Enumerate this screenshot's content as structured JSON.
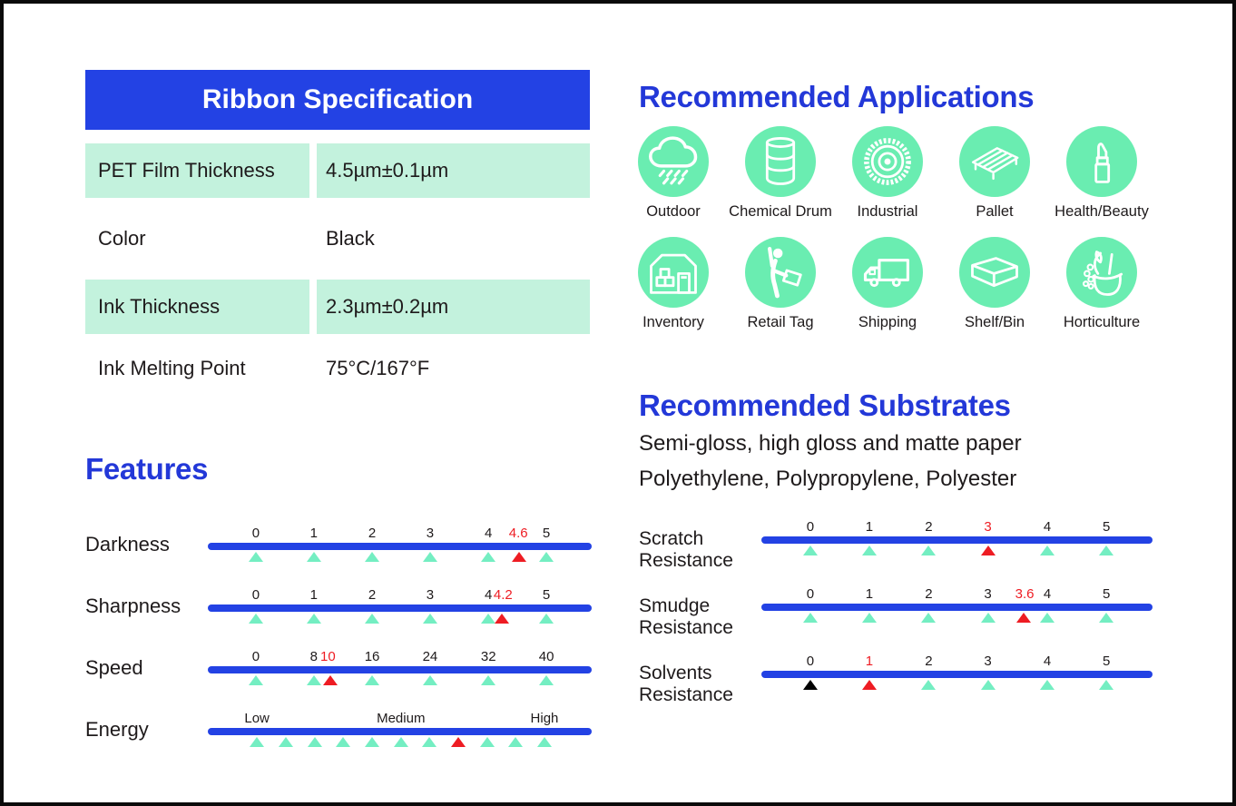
{
  "colors": {
    "blue": "#2342E4",
    "title_blue": "#2338D8",
    "mint_row": "#C3F2DD",
    "icon_circle": "#6AEDB1",
    "triangle_teal": "#74EEC2",
    "red": "#EE1C23",
    "text": "#1E1A1B",
    "marker_black": "#000000"
  },
  "spec_table": {
    "title": "Ribbon Specification",
    "rows": [
      {
        "label": "PET Film Thickness",
        "value": "4.5µm±0.1µm",
        "highlight": true
      },
      {
        "label": "Color",
        "value": "Black",
        "highlight": false
      },
      {
        "label": "Ink Thickness",
        "value": "2.3µm±0.2µm",
        "highlight": true
      },
      {
        "label": "Ink Melting Point",
        "value": "75°C/167°F",
        "highlight": false
      }
    ]
  },
  "applications": {
    "title": "Recommended Applications",
    "items": [
      {
        "label": "Outdoor",
        "icon": "rain-cloud"
      },
      {
        "label": "Chemical Drum",
        "icon": "drum"
      },
      {
        "label": "Industrial",
        "icon": "gear"
      },
      {
        "label": "Pallet",
        "icon": "pallet"
      },
      {
        "label": "Health/Beauty",
        "icon": "lipstick"
      },
      {
        "label": "Inventory",
        "icon": "warehouse"
      },
      {
        "label": "Retail Tag",
        "icon": "retail-tag"
      },
      {
        "label": "Shipping",
        "icon": "truck"
      },
      {
        "label": "Shelf/Bin",
        "icon": "bin"
      },
      {
        "label": "Horticulture",
        "icon": "flower-basket"
      }
    ]
  },
  "features": {
    "title": "Features"
  },
  "substrates": {
    "title": "Recommended Substrates",
    "lines": [
      "Semi-gloss, high gloss and matte paper",
      "Polyethylene, Polypropylene, Polyester"
    ]
  },
  "chart_data": [
    {
      "type": "scale",
      "section": "Features",
      "name": "Darkness",
      "min": 0,
      "max": 5,
      "ticks": [
        0,
        1,
        2,
        3,
        4,
        5
      ],
      "value": 4.6,
      "render": {
        "name_lines": [
          "Darkness"
        ],
        "labels": [
          {
            "text": "0",
            "pos": 12.5,
            "color": "dark"
          },
          {
            "text": "1",
            "pos": 27.6,
            "color": "dark"
          },
          {
            "text": "2",
            "pos": 42.8,
            "color": "dark"
          },
          {
            "text": "3",
            "pos": 57.9,
            "color": "dark"
          },
          {
            "text": "4",
            "pos": 73.1,
            "color": "dark"
          },
          {
            "text": "4.6",
            "pos": 80.9,
            "color": "red"
          },
          {
            "text": "5",
            "pos": 88.2,
            "color": "dark"
          }
        ],
        "triangles": [
          {
            "pos": 12.5,
            "color": "teal"
          },
          {
            "pos": 27.6,
            "color": "teal"
          },
          {
            "pos": 42.8,
            "color": "teal"
          },
          {
            "pos": 57.9,
            "color": "teal"
          },
          {
            "pos": 73.1,
            "color": "teal"
          },
          {
            "pos": 81.2,
            "color": "red"
          },
          {
            "pos": 88.2,
            "color": "teal"
          }
        ]
      }
    },
    {
      "type": "scale",
      "section": "Features",
      "name": "Sharpness",
      "min": 0,
      "max": 5,
      "ticks": [
        0,
        1,
        2,
        3,
        4,
        5
      ],
      "value": 4.2,
      "render": {
        "name_lines": [
          "Sharpness"
        ],
        "labels": [
          {
            "text": "0",
            "pos": 12.5,
            "color": "dark"
          },
          {
            "text": "1",
            "pos": 27.6,
            "color": "dark"
          },
          {
            "text": "2",
            "pos": 42.8,
            "color": "dark"
          },
          {
            "text": "3",
            "pos": 57.9,
            "color": "dark"
          },
          {
            "text": "4",
            "pos": 73.1,
            "color": "dark"
          },
          {
            "text": "4.2",
            "pos": 76.9,
            "color": "red"
          },
          {
            "text": "5",
            "pos": 88.2,
            "color": "dark"
          }
        ],
        "triangles": [
          {
            "pos": 12.5,
            "color": "teal"
          },
          {
            "pos": 27.6,
            "color": "teal"
          },
          {
            "pos": 42.8,
            "color": "teal"
          },
          {
            "pos": 57.9,
            "color": "teal"
          },
          {
            "pos": 73.1,
            "color": "teal"
          },
          {
            "pos": 76.6,
            "color": "red"
          },
          {
            "pos": 88.2,
            "color": "teal"
          }
        ]
      }
    },
    {
      "type": "scale",
      "section": "Features",
      "name": "Speed",
      "min": 0,
      "max": 40,
      "ticks": [
        0,
        8,
        16,
        24,
        32,
        40
      ],
      "value": 10,
      "render": {
        "name_lines": [
          "Speed"
        ],
        "labels": [
          {
            "text": "0",
            "pos": 12.5,
            "color": "dark"
          },
          {
            "text": "8",
            "pos": 27.6,
            "color": "dark"
          },
          {
            "text": "10",
            "pos": 31.3,
            "color": "red"
          },
          {
            "text": "16",
            "pos": 42.8,
            "color": "dark"
          },
          {
            "text": "24",
            "pos": 57.9,
            "color": "dark"
          },
          {
            "text": "32",
            "pos": 73.1,
            "color": "dark"
          },
          {
            "text": "40",
            "pos": 88.2,
            "color": "dark"
          }
        ],
        "triangles": [
          {
            "pos": 12.5,
            "color": "teal"
          },
          {
            "pos": 27.6,
            "color": "teal"
          },
          {
            "pos": 31.8,
            "color": "red"
          },
          {
            "pos": 42.8,
            "color": "teal"
          },
          {
            "pos": 57.9,
            "color": "teal"
          },
          {
            "pos": 73.1,
            "color": "teal"
          },
          {
            "pos": 88.2,
            "color": "teal"
          }
        ]
      }
    },
    {
      "type": "scale",
      "section": "Features",
      "name": "Energy",
      "levels": [
        "Low",
        "Medium",
        "High"
      ],
      "value": "medium-high",
      "render": {
        "name_lines": [
          "Energy"
        ],
        "labels": [
          {
            "text": "Low",
            "pos": 12.8,
            "color": "dark"
          },
          {
            "text": "Medium",
            "pos": 50.3,
            "color": "dark"
          },
          {
            "text": "High",
            "pos": 87.7,
            "color": "dark"
          }
        ],
        "triangles": [
          {
            "pos": 12.8,
            "color": "teal"
          },
          {
            "pos": 20.3,
            "color": "teal"
          },
          {
            "pos": 27.8,
            "color": "teal"
          },
          {
            "pos": 35.3,
            "color": "teal"
          },
          {
            "pos": 42.8,
            "color": "teal"
          },
          {
            "pos": 50.3,
            "color": "teal"
          },
          {
            "pos": 57.8,
            "color": "teal"
          },
          {
            "pos": 65.2,
            "color": "red"
          },
          {
            "pos": 72.7,
            "color": "teal"
          },
          {
            "pos": 80.2,
            "color": "teal"
          },
          {
            "pos": 87.7,
            "color": "teal"
          }
        ]
      }
    },
    {
      "type": "scale",
      "section": "Substrates",
      "name": "Scratch Resistance",
      "min": 0,
      "max": 5,
      "ticks": [
        0,
        1,
        2,
        3,
        4,
        5
      ],
      "value": 3,
      "render": {
        "name_lines": [
          "Scratch",
          "Resistance"
        ],
        "labels": [
          {
            "text": "0",
            "pos": 12.5,
            "color": "dark"
          },
          {
            "text": "1",
            "pos": 27.6,
            "color": "dark"
          },
          {
            "text": "2",
            "pos": 42.8,
            "color": "dark"
          },
          {
            "text": "3",
            "pos": 57.9,
            "color": "red"
          },
          {
            "text": "4",
            "pos": 73.1,
            "color": "dark"
          },
          {
            "text": "5",
            "pos": 88.2,
            "color": "dark"
          }
        ],
        "triangles": [
          {
            "pos": 12.5,
            "color": "teal"
          },
          {
            "pos": 27.6,
            "color": "teal"
          },
          {
            "pos": 42.8,
            "color": "teal"
          },
          {
            "pos": 57.9,
            "color": "red"
          },
          {
            "pos": 73.1,
            "color": "teal"
          },
          {
            "pos": 88.2,
            "color": "teal"
          }
        ]
      }
    },
    {
      "type": "scale",
      "section": "Substrates",
      "name": "Smudge Resistance",
      "min": 0,
      "max": 5,
      "ticks": [
        0,
        1,
        2,
        3,
        4,
        5
      ],
      "value": 3.6,
      "render": {
        "name_lines": [
          "Smudge",
          "Resistance"
        ],
        "labels": [
          {
            "text": "0",
            "pos": 12.5,
            "color": "dark"
          },
          {
            "text": "1",
            "pos": 27.6,
            "color": "dark"
          },
          {
            "text": "2",
            "pos": 42.8,
            "color": "dark"
          },
          {
            "text": "3",
            "pos": 57.9,
            "color": "dark"
          },
          {
            "text": "3.6",
            "pos": 67.3,
            "color": "red"
          },
          {
            "text": "4",
            "pos": 73.1,
            "color": "dark"
          },
          {
            "text": "5",
            "pos": 88.2,
            "color": "dark"
          }
        ],
        "triangles": [
          {
            "pos": 12.5,
            "color": "teal"
          },
          {
            "pos": 27.6,
            "color": "teal"
          },
          {
            "pos": 42.8,
            "color": "teal"
          },
          {
            "pos": 57.9,
            "color": "teal"
          },
          {
            "pos": 67.0,
            "color": "red"
          },
          {
            "pos": 73.1,
            "color": "teal"
          },
          {
            "pos": 88.2,
            "color": "teal"
          }
        ]
      }
    },
    {
      "type": "scale",
      "section": "Substrates",
      "name": "Solvents Resistance",
      "min": 0,
      "max": 5,
      "ticks": [
        0,
        1,
        2,
        3,
        4,
        5
      ],
      "value": 1,
      "baseline_marker": 0,
      "render": {
        "name_lines": [
          "Solvents",
          "Resistance"
        ],
        "labels": [
          {
            "text": "0",
            "pos": 12.5,
            "color": "dark"
          },
          {
            "text": "1",
            "pos": 27.6,
            "color": "red"
          },
          {
            "text": "2",
            "pos": 42.8,
            "color": "dark"
          },
          {
            "text": "3",
            "pos": 57.9,
            "color": "dark"
          },
          {
            "text": "4",
            "pos": 73.1,
            "color": "dark"
          },
          {
            "text": "5",
            "pos": 88.2,
            "color": "dark"
          }
        ],
        "triangles": [
          {
            "pos": 12.5,
            "color": "black"
          },
          {
            "pos": 27.6,
            "color": "red"
          },
          {
            "pos": 42.8,
            "color": "teal"
          },
          {
            "pos": 57.9,
            "color": "teal"
          },
          {
            "pos": 73.1,
            "color": "teal"
          },
          {
            "pos": 88.2,
            "color": "teal"
          }
        ]
      }
    }
  ]
}
